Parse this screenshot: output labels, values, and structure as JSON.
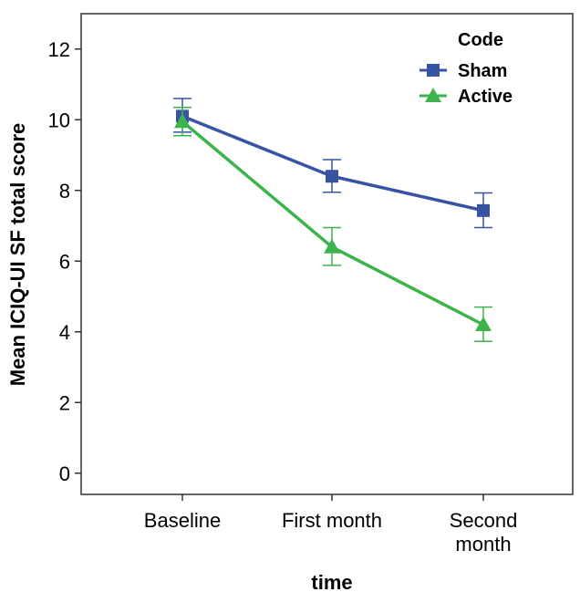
{
  "chart_data": {
    "type": "line",
    "title": "",
    "xlabel": "time",
    "ylabel": "Mean ICIQ-UI SF total score",
    "categories": [
      "Baseline",
      "First month",
      "Second month"
    ],
    "category_lines": [
      [
        "Baseline"
      ],
      [
        "First month"
      ],
      [
        "Second",
        "month"
      ]
    ],
    "yticks": [
      0,
      2,
      4,
      6,
      8,
      10,
      12
    ],
    "ylim": [
      -0.6,
      13
    ],
    "grid": false,
    "legend": {
      "title": "Code",
      "placement": "top-right"
    },
    "series": [
      {
        "name": "Sham",
        "marker": "square",
        "color": "#3953a4",
        "values": [
          10.1,
          8.4,
          7.43
        ],
        "err_low": [
          9.65,
          7.95,
          6.95
        ],
        "err_high": [
          10.6,
          8.87,
          7.93
        ]
      },
      {
        "name": "Active",
        "marker": "triangle",
        "color": "#3cb44b",
        "values": [
          9.95,
          6.4,
          4.2
        ],
        "err_low": [
          9.55,
          5.88,
          3.73
        ],
        "err_high": [
          10.35,
          6.95,
          4.7
        ]
      }
    ]
  }
}
